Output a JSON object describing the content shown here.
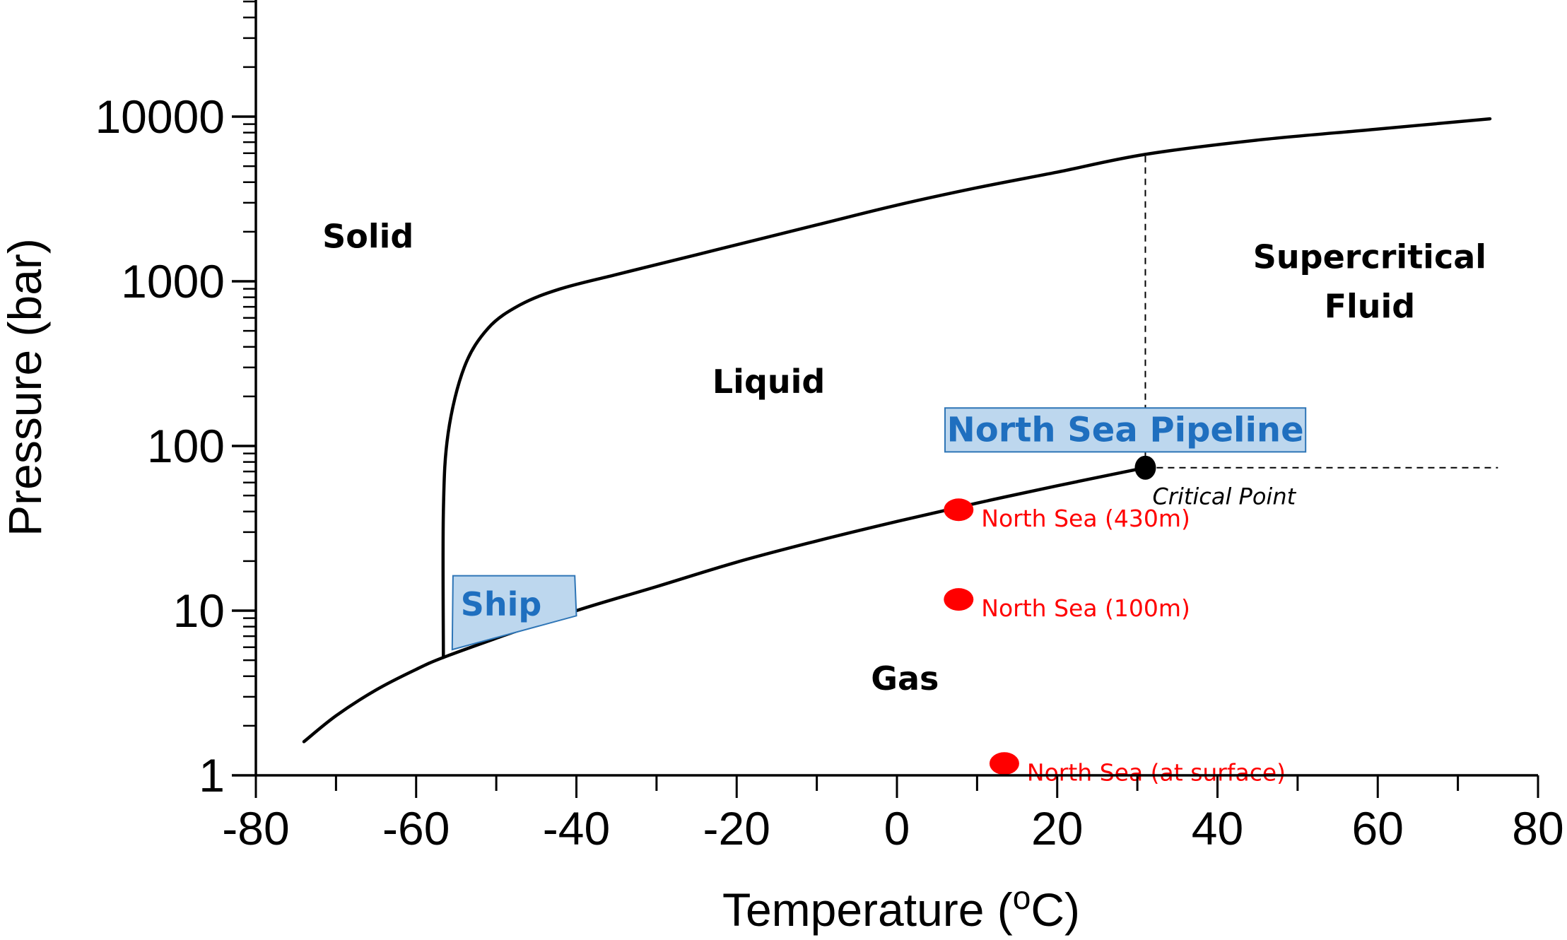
{
  "chart_data": {
    "type": "line",
    "xlabel": "Temperature (",
    "xlabel_sup": "o",
    "xlabel_tail": "C)",
    "ylabel": "Pressure (bar)",
    "xlim": [
      -80,
      80
    ],
    "ylim": [
      1,
      50000
    ],
    "y_scale": "log",
    "grid": false,
    "x_ticks": [
      -80,
      -60,
      -40,
      -20,
      0,
      20,
      40,
      60,
      80
    ],
    "x_tick_labels": [
      "-80",
      "-60",
      "-40",
      "-20",
      "0",
      "20",
      "40",
      "60",
      "80"
    ],
    "y_ticks": [
      1,
      10,
      100,
      1000,
      10000
    ],
    "y_tick_labels": [
      "1",
      "10",
      "100",
      "1000",
      "10000"
    ],
    "series": [
      {
        "key": "sublimation_vapor_curve",
        "color": "#000000",
        "points": [
          [
            -74,
            1.6
          ],
          [
            -70,
            2.3
          ],
          [
            -65,
            3.3
          ],
          [
            -60,
            4.4
          ],
          [
            -56.6,
            5.2
          ],
          [
            -50,
            6.8
          ],
          [
            -40,
            10
          ],
          [
            -30,
            14
          ],
          [
            -20,
            19.7
          ],
          [
            -10,
            26.5
          ],
          [
            0,
            34.8
          ],
          [
            10,
            45
          ],
          [
            20,
            57.3
          ],
          [
            31,
            73.8
          ]
        ]
      },
      {
        "key": "melting_curve",
        "color": "#000000",
        "points": [
          [
            -56.6,
            5.2
          ],
          [
            -56.6,
            40
          ],
          [
            -56,
            120
          ],
          [
            -54,
            300
          ],
          [
            -51,
            520
          ],
          [
            -47,
            720
          ],
          [
            -42,
            900
          ],
          [
            -35,
            1100
          ],
          [
            -25,
            1450
          ],
          [
            -10,
            2200
          ],
          [
            0,
            2900
          ],
          [
            10,
            3700
          ],
          [
            20,
            4600
          ],
          [
            31,
            5900
          ],
          [
            45,
            7200
          ],
          [
            60,
            8400
          ],
          [
            74,
            9700
          ]
        ]
      }
    ],
    "critical_point": {
      "label": "Critical Point",
      "x": 31,
      "y": 73.8,
      "color": "#000000"
    },
    "guide_lines": [
      {
        "key": "vertical_dash",
        "x": 31,
        "y_from": 73.8,
        "y_to": 5900
      },
      {
        "key": "horizontal_dash",
        "y": 73.8,
        "x_from": 31,
        "x_to": 75
      }
    ],
    "regions": [
      {
        "key": "solid",
        "label": "Solid",
        "x": -66,
        "y": 1600
      },
      {
        "key": "liquid",
        "label": "Liquid",
        "x": -16,
        "y": 210
      },
      {
        "key": "gas",
        "label": "Gas",
        "x": 1,
        "y": 3.3
      },
      {
        "key": "supercritical",
        "label": "Supercritical",
        "label2": "Fluid",
        "x": 59,
        "y": 1200
      }
    ],
    "annotations": [
      {
        "key": "pipeline",
        "label": "North Sea Pipeline",
        "fill": "#bdd7ee",
        "stroke": "#2e75b6",
        "text_color": "#1f6fbf",
        "corners": [
          [
            6,
            92
          ],
          [
            51,
            92
          ],
          [
            51,
            170
          ],
          [
            6,
            170
          ]
        ]
      },
      {
        "key": "ship",
        "label": "Ship",
        "fill": "#bdd7ee",
        "stroke": "#2e75b6",
        "text_color": "#1f6fbf",
        "corners": [
          [
            -55.5,
            5.8
          ],
          [
            -40,
            9.3
          ],
          [
            -40.2,
            16.3
          ],
          [
            -55.4,
            16.3
          ]
        ]
      }
    ],
    "points": [
      {
        "key": "ns430",
        "label": "North Sea (430m)",
        "x": 7.7,
        "y": 41,
        "color": "#ff0000"
      },
      {
        "key": "ns100",
        "label": "North Sea (100m)",
        "x": 7.7,
        "y": 11.7,
        "color": "#ff0000"
      },
      {
        "key": "nssurface",
        "label": "North Sea (at surface)",
        "x": 13.4,
        "y": 1.18,
        "color": "#ff0000"
      }
    ]
  }
}
